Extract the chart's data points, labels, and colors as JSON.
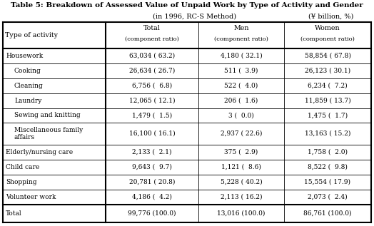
{
  "title": "Table 5: Breakdown of Assessed Value of Unpaid Work by Type of Activity and Gender",
  "subtitle_left": "(in 1996, RC-S Method)",
  "subtitle_right": "(¥ billion, %)",
  "col_headers_line1": [
    "Type of activity",
    "Total",
    "Men",
    "Women"
  ],
  "col_headers_line2": [
    "",
    "(component ratio)",
    "(component ratio)",
    "(component ratio)"
  ],
  "rows": [
    {
      "label": "Housework",
      "indent": 0,
      "total": "63,034 ( 63.2)",
      "men": "4,180 ( 32.1)",
      "women": "58,854 ( 67.8)",
      "bold": true,
      "wrap": false
    },
    {
      "label": "Cooking",
      "indent": 1,
      "total": "26,634 ( 26.7)",
      "men": "511 (  3.9)",
      "women": "26,123 ( 30.1)",
      "bold": false,
      "wrap": false
    },
    {
      "label": "Cleaning",
      "indent": 1,
      "total": "6,756 (  6.8)",
      "men": "522 (  4.0)",
      "women": "6,234 (  7.2)",
      "bold": false,
      "wrap": false
    },
    {
      "label": "Laundry",
      "indent": 1,
      "total": "12,065 ( 12.1)",
      "men": "206 (  1.6)",
      "women": "11,859 ( 13.7)",
      "bold": false,
      "wrap": false
    },
    {
      "label": "Sewing and knitting",
      "indent": 1,
      "total": "1,479 (  1.5)",
      "men": "3 (  0.0)",
      "women": "1,475 (  1.7)",
      "bold": false,
      "wrap": false
    },
    {
      "label": "Miscellaneous family\naffairs",
      "indent": 1,
      "total": "16,100 ( 16.1)",
      "men": "2,937 ( 22.6)",
      "women": "13,163 ( 15.2)",
      "bold": false,
      "wrap": true
    },
    {
      "label": "Elderly/nursing care",
      "indent": 0,
      "total": "2,133 (  2.1)",
      "men": "375 (  2.9)",
      "women": "1,758 (  2.0)",
      "bold": false,
      "wrap": false
    },
    {
      "label": "Child care",
      "indent": 0,
      "total": "9,643 (  9.7)",
      "men": "1,121 (  8.6)",
      "women": "8,522 (  9.8)",
      "bold": false,
      "wrap": false
    },
    {
      "label": "Shopping",
      "indent": 0,
      "total": "20,781 ( 20.8)",
      "men": "5,228 ( 40.2)",
      "women": "15,554 ( 17.9)",
      "bold": false,
      "wrap": false
    },
    {
      "label": "Volunteer work",
      "indent": 0,
      "total": "4,186 (  4.2)",
      "men": "2,113 ( 16.2)",
      "women": "2,073 (  2.4)",
      "bold": false,
      "wrap": false
    },
    {
      "label": "Total",
      "indent": 0,
      "total": "99,776 (100.0)",
      "men": "13,016 (100.0)",
      "women": "86,761 (100.0)",
      "bold": false,
      "wrap": false
    }
  ],
  "bg_color": "#ffffff",
  "text_color": "#000000",
  "line_color": "#000000",
  "title_fontsize": 7.5,
  "subtitle_fontsize": 7.0,
  "header_fontsize": 6.8,
  "cell_fontsize": 6.5
}
